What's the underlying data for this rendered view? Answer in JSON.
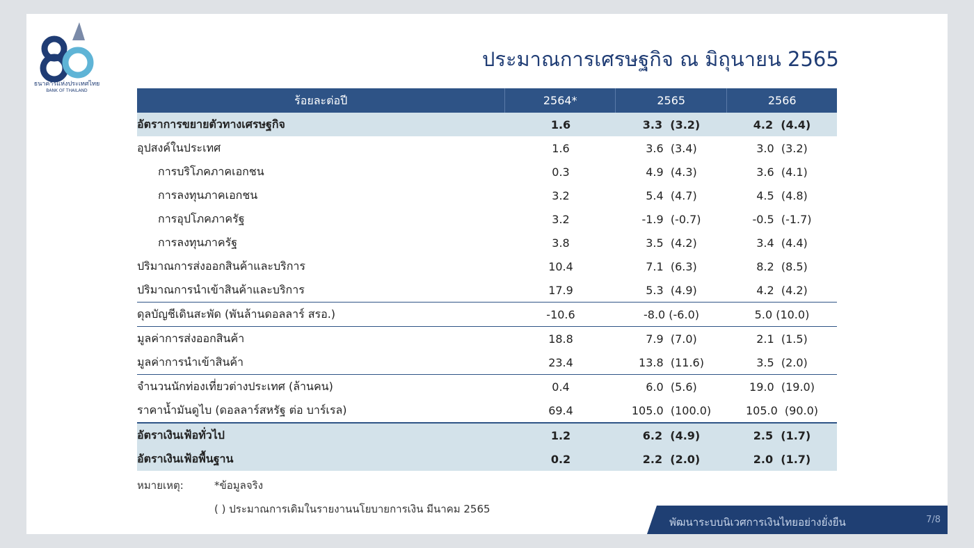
{
  "header": {
    "org_th": "ธนาคารแห่งประเทศไทย",
    "org_en": "BANK OF THAILAND"
  },
  "title": "ประมาณการเศรษฐกิจ ณ มิถุนายน 2565",
  "table": {
    "columns": [
      "ร้อยละต่อปี",
      "2564*",
      "2565",
      "2566"
    ],
    "rows": [
      [
        "อัตราการขยายตัวทางเศรษฐกิจ",
        "1.6",
        "3.3  (3.2)",
        "4.2  (4.4)"
      ],
      [
        "อุปสงค์ในประเทศ",
        "1.6",
        "3.6  (3.4)",
        "3.0  (3.2)"
      ],
      [
        "การบริโภคภาคเอกชน",
        "0.3",
        "4.9  (4.3)",
        "3.6  (4.1)"
      ],
      [
        "การลงทุนภาคเอกชน",
        "3.2",
        "5.4  (4.7)",
        "4.5  (4.8)"
      ],
      [
        "การอุปโภคภาครัฐ",
        "3.2",
        "-1.9  (-0.7)",
        "-0.5  (-1.7)"
      ],
      [
        "การลงทุนภาครัฐ",
        "3.8",
        "3.5  (4.2)",
        "3.4  (4.4)"
      ],
      [
        "ปริมาณการส่งออกสินค้าและบริการ",
        "10.4",
        "7.1  (6.3)",
        "8.2  (8.5)"
      ],
      [
        "ปริมาณการนำเข้าสินค้าและบริการ",
        "17.9",
        "5.3  (4.9)",
        "4.2  (4.2)"
      ],
      [
        "ดุลบัญชีเดินสะพัด (พันล้านดอลลาร์ สรอ.)",
        "-10.6",
        "-8.0 (-6.0)",
        "5.0 (10.0)"
      ],
      [
        "มูลค่าการส่งออกสินค้า",
        "18.8",
        "7.9  (7.0)",
        "2.1  (1.5)"
      ],
      [
        "มูลค่าการนำเข้าสินค้า",
        "23.4",
        "13.8  (11.6)",
        "3.5  (2.0)"
      ],
      [
        "จำนวนนักท่องเที่ยวต่างประเทศ (ล้านคน)",
        "0.4",
        "6.0  (5.6)",
        "19.0  (19.0)"
      ],
      [
        "ราคาน้ำมันดูไบ (ดอลลาร์สหรัฐ ต่อ บาร์เรล)",
        "69.4",
        "105.0  (100.0)",
        "105.0  (90.0)"
      ],
      [
        "อัตราเงินเฟ้อทั่วไป",
        "1.2",
        "6.2  (4.9)",
        "2.5  (1.7)"
      ],
      [
        "อัตราเงินเฟ้อพื้นฐาน",
        "0.2",
        "2.2  (2.0)",
        "2.0  (1.7)"
      ]
    ]
  },
  "notes": {
    "label": "หมายเหตุ:",
    "items": [
      "*ข้อมูลจริง",
      "( ) ประมาณการเดิมในรายงานนโยบายการเงิน มีนาคม 2565"
    ]
  },
  "footer": {
    "slogan": "พัฒนาระบบนิเวศการเงินไทยอย่างยั่งยืน",
    "page": "7/8"
  }
}
